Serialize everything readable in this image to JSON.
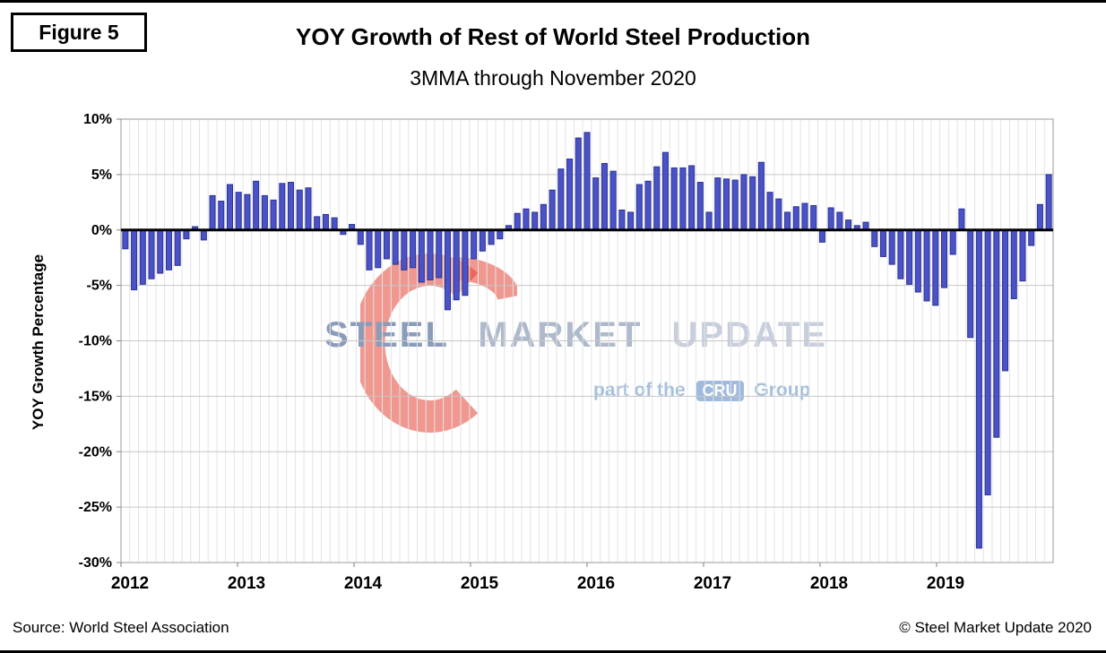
{
  "figure_label": "Figure 5",
  "title": "YOY Growth of Rest of World Steel Production",
  "subtitle": "3MMA through November 2020",
  "footer": {
    "source": "Source: World Steel Association",
    "copyright": "© Steel Market Update 2020"
  },
  "watermark": {
    "words": [
      "STEEL",
      "MARKET",
      "UPDATE"
    ],
    "tagline_prefix": "part of the",
    "tagline_box": "CRU",
    "tagline_suffix": "Group",
    "logo_color": "#e23a2b"
  },
  "chart_data": {
    "type": "bar",
    "title": "YOY Growth of Rest of World Steel Production",
    "subtitle": "3MMA through November 2020",
    "xlabel": "",
    "ylabel": "YOY Growth Percentage",
    "ylim": [
      -30,
      10
    ],
    "ytick_step": 5,
    "ytick_labels": [
      "10%",
      "5%",
      "0%",
      "-5%",
      "-10%",
      "-15%",
      "-20%",
      "-25%",
      "-30%"
    ],
    "xtick_labels": [
      "2012",
      "2013",
      "2014",
      "2015",
      "2016",
      "2017",
      "2018",
      "2019"
    ],
    "x_period": "monthly, Jan 2012 through Nov 2020",
    "grid": true,
    "legend": "none",
    "bar_color": "#4a52c8",
    "bar_border": "#2c338f",
    "series": [
      {
        "name": "YOY growth % (3MMA)",
        "values_by_year": {
          "2012": [
            -1.7,
            -5.4,
            -4.9,
            -4.4,
            -3.9,
            -3.6,
            -3.2,
            -0.8,
            0.3,
            -0.9,
            3.1,
            2.6
          ],
          "2013": [
            4.1,
            3.4,
            3.2,
            4.4,
            3.1,
            2.7,
            4.2,
            4.3,
            3.6,
            3.8,
            1.2,
            1.4
          ],
          "2014": [
            1.1,
            -0.4,
            0.5,
            -1.3,
            -3.6,
            -3.4,
            -2.6,
            -3.1,
            -3.6,
            -3.4,
            -4.7,
            -4.5
          ],
          "2015": [
            -4.3,
            -7.2,
            -6.3,
            -5.9,
            -2.6,
            -1.9,
            -1.3,
            -0.8,
            0.4,
            1.5,
            1.9,
            1.6
          ],
          "2016": [
            2.3,
            3.6,
            5.5,
            6.4,
            8.3,
            8.8,
            4.7,
            6.0,
            5.3,
            1.8,
            1.6,
            4.1
          ],
          "2017": [
            4.4,
            5.7,
            7.0,
            5.6,
            5.6,
            5.8,
            4.3,
            1.6,
            4.7,
            4.6,
            4.5,
            5.0
          ],
          "2018": [
            4.8,
            6.1,
            3.4,
            2.8,
            1.6,
            2.1,
            2.4,
            2.2,
            -1.1,
            2.0,
            1.6,
            0.9
          ],
          "2019": [
            0.4,
            0.7,
            -1.5,
            -2.4,
            -3.1,
            -4.4,
            -4.9,
            -5.6,
            -6.4,
            -6.8,
            -5.2,
            -2.2
          ],
          "2020": [
            1.9,
            -9.7,
            -28.7,
            -23.9,
            -18.7,
            -12.7,
            -6.2,
            -4.6,
            -1.4,
            2.3,
            5.0
          ]
        }
      }
    ]
  }
}
